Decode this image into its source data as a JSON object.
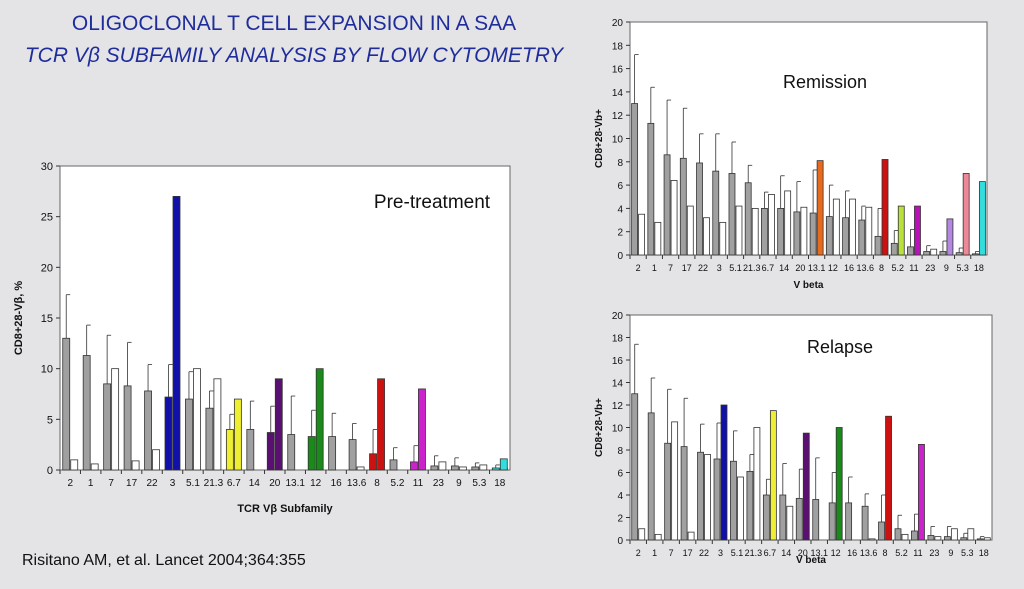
{
  "slide": {
    "title": "OLIGOCLONAL T CELL EXPANSION IN A SAA",
    "subtitle": "TCR Vβ SUBFAMILY ANALYSIS BY FLOW CYTOMETRY",
    "citation": "Risitano AM, et al. Lancet 2004;364:355"
  },
  "chart_data": [
    {
      "type": "bar",
      "title": "Pre-treatment",
      "xlabel": "TCR Vβ Subfamily",
      "ylabel": "CD8+28-Vβ, %",
      "ylim": [
        0,
        30
      ],
      "yticks": [
        0,
        5,
        10,
        15,
        20,
        25,
        30
      ],
      "categories": [
        "2",
        "1",
        "7",
        "17",
        "22",
        "3",
        "5.1",
        "21.3",
        "6.7",
        "14",
        "20",
        "13.1",
        "12",
        "16",
        "13.6",
        "8",
        "5.2",
        "11",
        "23",
        "9",
        "5.3",
        "18"
      ],
      "series": [
        {
          "values": [
            13,
            11.3,
            8.5,
            8.3,
            7.8,
            7.2,
            7,
            6.1,
            4,
            4,
            3.7,
            3.5,
            3.3,
            3.3,
            3,
            1.6,
            1,
            0.8,
            0.4,
            0.4,
            0.3,
            0.2
          ],
          "error": [
            4.3,
            3,
            4.8,
            4.3,
            2.6,
            3.2,
            2.7,
            1.7,
            1.5,
            2.8,
            2.6,
            3.8,
            2.6,
            2.3,
            1.6,
            2.4,
            1.2,
            1.6,
            1,
            0.8,
            0.4,
            0.3
          ],
          "colors": [
            "#a0a0a0",
            "#a0a0a0",
            "#a0a0a0",
            "#a0a0a0",
            "#a0a0a0",
            "#1111aa",
            "#a0a0a0",
            "#a0a0a0",
            "#eeee33",
            "#a0a0a0",
            "#5a1070",
            "#a0a0a0",
            "#1a8a1a",
            "#a0a0a0",
            "#a0a0a0",
            "#cc1111",
            "#a0a0a0",
            "#cc22cc",
            "#a0a0a0",
            "#a0a0a0",
            "#a0a0a0",
            "#33dddd"
          ],
          "highlight": [
            27,
            7,
            9,
            10,
            9,
            8,
            1.1
          ]
        },
        {
          "values": [
            1,
            0.6,
            10,
            0.9,
            2,
            0,
            10,
            9,
            0,
            0,
            0,
            0,
            0,
            0,
            0.3,
            0,
            0,
            0,
            0.8,
            0.3,
            0.5,
            0.2
          ]
        }
      ],
      "highlight_categories": [
        "3",
        "6.7",
        "20",
        "12",
        "8",
        "11",
        "18"
      ]
    },
    {
      "type": "bar",
      "title": "Remission",
      "xlabel": "V beta",
      "ylabel": "CD8+28-Vb+",
      "ylim": [
        0,
        20
      ],
      "yticks": [
        0,
        2,
        4,
        6,
        8,
        10,
        12,
        14,
        16,
        18,
        20
      ],
      "categories": [
        "2",
        "1",
        "7",
        "17",
        "22",
        "3",
        "5.1",
        "21.3",
        "6.7",
        "14",
        "20",
        "13.1",
        "12",
        "16",
        "13.6",
        "8",
        "5.2",
        "11",
        "23",
        "9",
        "5.3",
        "18"
      ],
      "series": [
        {
          "values": [
            13,
            11.3,
            8.6,
            8.3,
            7.9,
            7.2,
            7,
            6.2,
            4,
            4,
            3.7,
            3.6,
            3.3,
            3.2,
            3,
            1.6,
            1,
            0.7,
            0.3,
            0.3,
            0.2,
            0.1
          ],
          "error": [
            4.2,
            3.1,
            4.7,
            4.3,
            2.5,
            3.2,
            2.7,
            1.5,
            1.4,
            2.8,
            2.6,
            3.7,
            2.7,
            2.3,
            1.2,
            2.4,
            1.1,
            1.5,
            0.5,
            0.9,
            0.4,
            0.2
          ]
        },
        {
          "values": [
            3.5,
            2.8,
            6.4,
            4.2,
            3.2,
            2.8,
            4.2,
            4,
            5.2,
            5.5,
            4.1,
            8.1,
            4.8,
            4.8,
            4.1,
            8.2,
            4.2,
            4.2,
            0.5,
            3.1,
            7,
            6.3
          ],
          "colors": [
            "#ffffff",
            "#ffffff",
            "#ffffff",
            "#ffffff",
            "#ffffff",
            "#ffffff",
            "#ffffff",
            "#ffffff",
            "#ffffff",
            "#ffffff",
            "#ffffff",
            "#e86a1c",
            "#ffffff",
            "#ffffff",
            "#ffffff",
            "#cc1111",
            "#b8e23a",
            "#bb11bb",
            "#ffffff",
            "#b488e0",
            "#ee8899",
            "#33dddd"
          ]
        }
      ]
    },
    {
      "type": "bar",
      "title": "Relapse",
      "xlabel": "V beta",
      "ylabel": "CD8+28-Vb+",
      "ylim": [
        0,
        20
      ],
      "yticks": [
        0,
        2,
        4,
        6,
        8,
        10,
        12,
        14,
        16,
        18,
        20
      ],
      "categories": [
        "2",
        "1",
        "7",
        "17",
        "22",
        "3",
        "5.1",
        "21.3",
        "6.7",
        "14",
        "20",
        "13.1",
        "12",
        "16",
        "13.6",
        "8",
        "5.2",
        "11",
        "23",
        "9",
        "5.3",
        "18"
      ],
      "series": [
        {
          "values": [
            13,
            11.3,
            8.6,
            8.3,
            7.8,
            7.2,
            7,
            6.1,
            4,
            4,
            3.7,
            3.6,
            3.3,
            3.3,
            3,
            1.6,
            1,
            0.8,
            0.4,
            0.3,
            0.2,
            0.1
          ],
          "error": [
            4.4,
            3.1,
            4.8,
            4.3,
            2.5,
            3.2,
            2.7,
            1.5,
            1.4,
            2.8,
            2.6,
            3.7,
            2.7,
            2.3,
            1.1,
            2.4,
            1.2,
            1.5,
            0.8,
            0.9,
            0.4,
            0.2
          ]
        },
        {
          "values": [
            1,
            0.5,
            10.5,
            0.7,
            7.6,
            12,
            5.6,
            10,
            11.5,
            3,
            9.5,
            0,
            10,
            0,
            0.1,
            11,
            0.5,
            8.5,
            0.3,
            1,
            1,
            0.2
          ],
          "colors": [
            "#ffffff",
            "#ffffff",
            "#ffffff",
            "#ffffff",
            "#ffffff",
            "#1111aa",
            "#ffffff",
            "#ffffff",
            "#eeee33",
            "#ffffff",
            "#5a1070",
            "#ffffff",
            "#1a8a1a",
            "#ffffff",
            "#ffffff",
            "#cc1111",
            "#ffffff",
            "#cc22cc",
            "#ffffff",
            "#ffffff",
            "#ffffff",
            "#ffffff"
          ]
        }
      ]
    }
  ]
}
